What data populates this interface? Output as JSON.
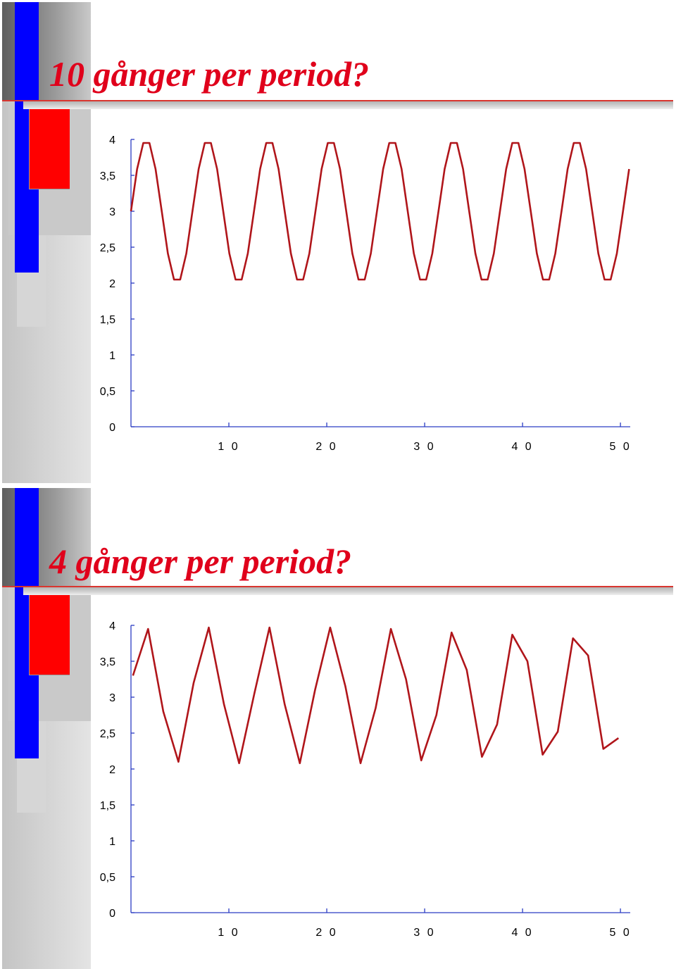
{
  "slides": [
    {
      "title": "10 gånger per period?"
    },
    {
      "title": "4 gånger per period?"
    }
  ],
  "colors": {
    "title": "#e0001b",
    "series": "#b0151a",
    "axis": "#2b3cc4",
    "accent_blue": "#0000ff",
    "accent_red": "#ff0000"
  },
  "chart_data": [
    {
      "type": "line",
      "ylim": [
        0,
        4
      ],
      "xlim": [
        0,
        51
      ],
      "y_ticks": [
        0,
        0.5,
        1,
        1.5,
        2,
        2.5,
        3,
        3.5,
        4
      ],
      "y_tick_labels": [
        "0",
        "0,5",
        "1",
        "1,5",
        "2",
        "2,5",
        "3",
        "3,5",
        "4"
      ],
      "x_ticks": [
        10,
        20,
        30,
        40,
        50
      ],
      "x_tick_labels": [
        "1 0",
        "2 0",
        "3 0",
        "4 0",
        "5 0"
      ],
      "series": [
        {
          "x": [
            0.0,
            0.628,
            1.256,
            1.885,
            2.513,
            3.141,
            3.769,
            4.398,
            5.026,
            5.654,
            6.282,
            6.91,
            7.539,
            8.167,
            8.795,
            9.423,
            10.052,
            10.68,
            11.308,
            11.936,
            12.565,
            13.193,
            13.821,
            14.449,
            15.077,
            15.706,
            16.334,
            16.962,
            17.59,
            18.219,
            18.847,
            19.475,
            20.103,
            20.731,
            21.36,
            21.988,
            22.616,
            23.244,
            23.873,
            24.501,
            25.129,
            25.757,
            26.385,
            27.014,
            27.642,
            28.27,
            28.898,
            29.527,
            30.155,
            30.783,
            31.411,
            32.04,
            32.668,
            33.296,
            33.924,
            34.552,
            35.181,
            35.809,
            36.437,
            37.065,
            37.694,
            38.322,
            38.95,
            39.578,
            40.206,
            40.835,
            41.463,
            42.091,
            42.719,
            43.348,
            43.976,
            44.604,
            45.232,
            45.86,
            46.489,
            47.117,
            47.745,
            48.373,
            49.002,
            49.63,
            50.258,
            50.886
          ],
          "y": [
            3.0,
            3.587,
            3.951,
            3.951,
            3.588,
            3.001,
            2.413,
            2.049,
            2.049,
            2.412,
            2.999,
            3.587,
            3.951,
            3.951,
            3.588,
            3.001,
            2.413,
            2.049,
            2.049,
            2.412,
            2.999,
            3.587,
            3.951,
            3.951,
            3.588,
            3.001,
            2.413,
            2.049,
            2.049,
            2.412,
            2.999,
            3.587,
            3.951,
            3.951,
            3.588,
            3.001,
            2.413,
            2.049,
            2.049,
            2.412,
            2.999,
            3.587,
            3.951,
            3.951,
            3.588,
            3.001,
            2.413,
            2.049,
            2.049,
            2.412,
            2.999,
            3.587,
            3.951,
            3.951,
            3.588,
            3.001,
            2.413,
            2.049,
            2.049,
            2.412,
            2.999,
            3.587,
            3.951,
            3.951,
            3.588,
            3.001,
            2.413,
            2.049,
            2.049,
            2.412,
            2.999,
            3.587,
            3.951,
            3.951,
            3.588,
            3.001,
            2.413,
            2.049,
            2.049,
            2.412,
            2.999,
            3.587
          ]
        }
      ]
    },
    {
      "type": "line",
      "ylim": [
        0,
        4
      ],
      "xlim": [
        0,
        51
      ],
      "y_ticks": [
        0,
        0.5,
        1,
        1.5,
        2,
        2.5,
        3,
        3.5,
        4
      ],
      "y_tick_labels": [
        "0",
        "0,5",
        "1",
        "1,5",
        "2",
        "2,5",
        "3",
        "3,5",
        "4"
      ],
      "x_ticks": [
        10,
        20,
        30,
        40,
        50
      ],
      "x_tick_labels": [
        "1 0",
        "2 0",
        "3 0",
        "4 0",
        "5 0"
      ],
      "series": [
        {
          "x": [
            0.2,
            1.75,
            3.3,
            4.85,
            6.4,
            7.95,
            9.5,
            11.05,
            12.6,
            14.15,
            15.7,
            17.25,
            18.8,
            20.35,
            21.9,
            23.45,
            25.0,
            26.55,
            28.1,
            29.65,
            31.2,
            32.75,
            34.3,
            35.85,
            37.4,
            38.95,
            40.5,
            42.05,
            43.6,
            45.15,
            46.7,
            48.25,
            49.8
          ],
          "y": [
            3.3,
            3.95,
            2.8,
            2.1,
            3.2,
            3.97,
            2.9,
            2.08,
            3.05,
            3.97,
            2.9,
            2.08,
            3.1,
            3.97,
            3.15,
            2.08,
            2.85,
            3.95,
            3.25,
            2.12,
            2.75,
            3.9,
            3.38,
            2.17,
            2.62,
            3.87,
            3.5,
            2.2,
            2.52,
            3.82,
            3.58,
            2.28,
            2.43
          ]
        }
      ]
    }
  ]
}
